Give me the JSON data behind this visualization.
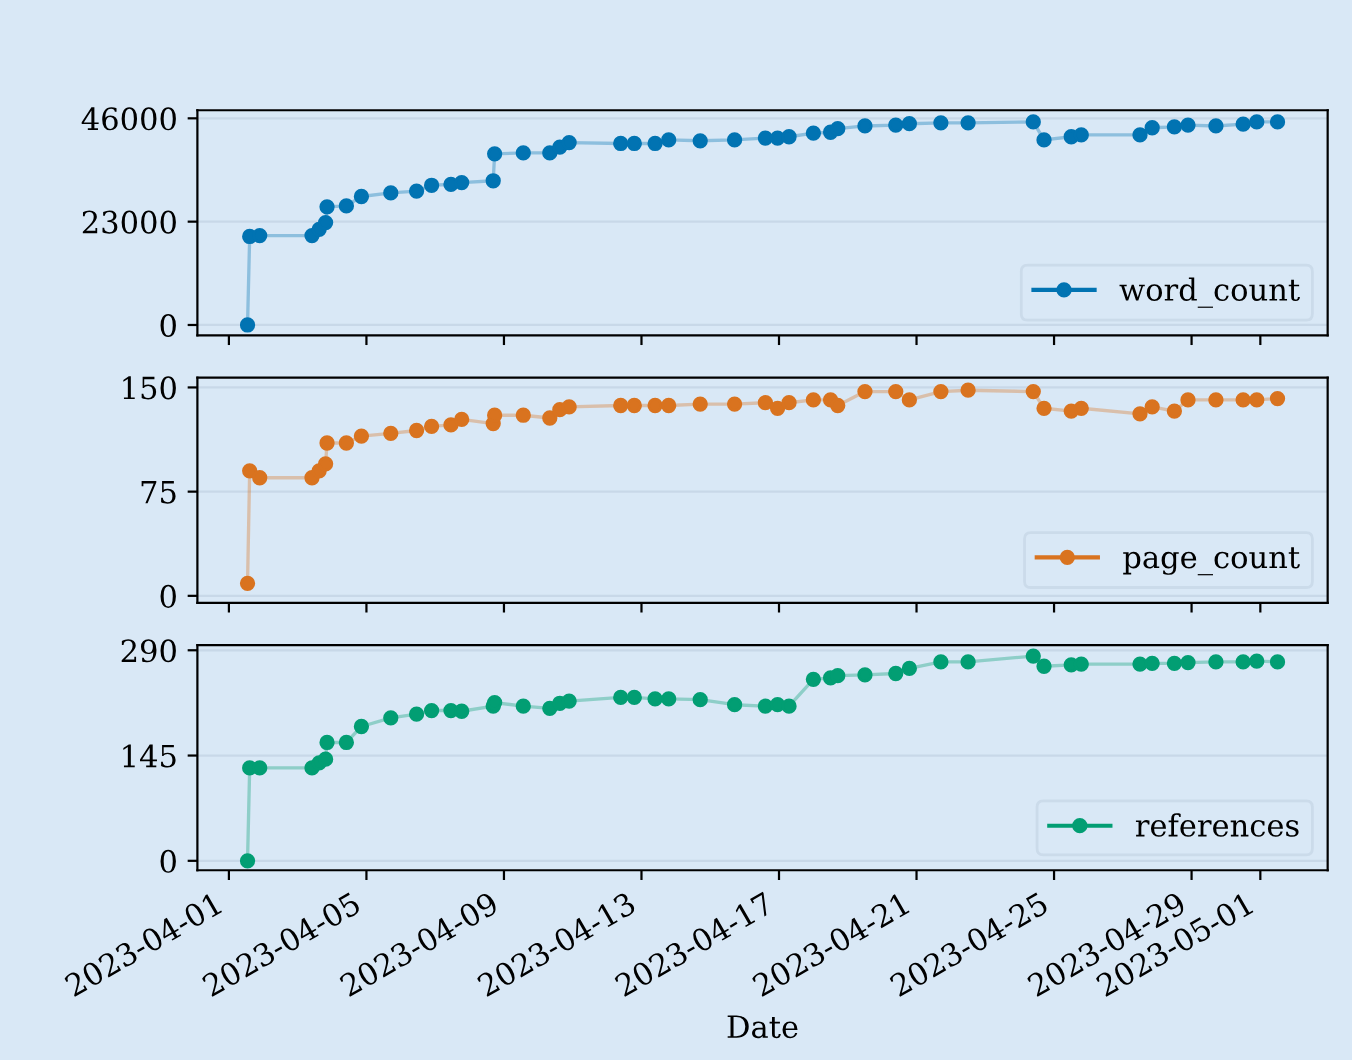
{
  "chart_data": [
    {
      "type": "line",
      "marker": "circle",
      "line_style": "solid",
      "legend": "bottom right",
      "grid": "y",
      "tick_labels": "y",
      "x": [
        "2023-04-01T13:00",
        "2023-04-01T14:30",
        "2023-04-01T21:30",
        "2023-04-03T10:00",
        "2023-04-03T15:00",
        "2023-04-03T19:30",
        "2023-04-03T20:30",
        "2023-04-04T10:00",
        "2023-04-04T20:30",
        "2023-04-05T17:00",
        "2023-04-06T11:00",
        "2023-04-06T21:30",
        "2023-04-07T11:00",
        "2023-04-07T18:30",
        "2023-04-08T16:30",
        "2023-04-08T17:30",
        "2023-04-09T13:30",
        "2023-04-10T08:00",
        "2023-04-10T15:00",
        "2023-04-10T21:30",
        "2023-04-12T09:30",
        "2023-04-12T19:00",
        "2023-04-13T09:30",
        "2023-04-13T19:00",
        "2023-04-14T17:00",
        "2023-04-15T17:00",
        "2023-04-16T14:30",
        "2023-04-16T23:00",
        "2023-04-17T07:00",
        "2023-04-18T00:00",
        "2023-04-18T12:00",
        "2023-04-18T17:00",
        "2023-04-19T12:00",
        "2023-04-20T09:30",
        "2023-04-20T19:00",
        "2023-04-21T17:00",
        "2023-04-22T12:00",
        "2023-04-24T09:30",
        "2023-04-24T17:00",
        "2023-04-25T12:00",
        "2023-04-25T19:00",
        "2023-04-27T12:00",
        "2023-04-27T20:30",
        "2023-04-28T12:00",
        "2023-04-28T21:30",
        "2023-04-29T17:00",
        "2023-04-30T12:00",
        "2023-04-30T21:30",
        "2023-05-01T12:00"
      ],
      "xlim": [
        "2023-03-31T02:00",
        "2023-05-02T23:00"
      ],
      "xticks": [
        "2023-04-01",
        "2023-04-05",
        "2023-04-09",
        "2023-04-13",
        "2023-04-17",
        "2023-04-21",
        "2023-04-25",
        "2023-04-29",
        "2023-05-01"
      ],
      "ylim": [
        -2300,
        47800
      ],
      "yticks": [
        0,
        23000,
        46000
      ],
      "series": [
        {
          "name": "word_count",
          "color": "#0173b2",
          "values": [
            0,
            19700,
            19900,
            19900,
            21300,
            22800,
            26300,
            26500,
            28600,
            29400,
            29800,
            31100,
            31300,
            31700,
            32100,
            38100,
            38300,
            38300,
            39600,
            40600,
            40400,
            40400,
            40400,
            41200,
            41000,
            41200,
            41600,
            41600,
            41900,
            42700,
            42900,
            43700,
            44300,
            44500,
            44800,
            45000,
            45000,
            45200,
            41200,
            41900,
            42300,
            42300,
            43900,
            44100,
            44500,
            44300,
            44700,
            45200,
            45200
          ]
        }
      ]
    },
    {
      "type": "line",
      "marker": "circle",
      "line_style": "solid",
      "legend": "bottom right",
      "grid": "y",
      "tick_labels": "y",
      "x": [
        "2023-04-01T13:00",
        "2023-04-01T14:30",
        "2023-04-01T21:30",
        "2023-04-03T10:00",
        "2023-04-03T15:00",
        "2023-04-03T19:30",
        "2023-04-03T20:30",
        "2023-04-04T10:00",
        "2023-04-04T20:30",
        "2023-04-05T17:00",
        "2023-04-06T11:00",
        "2023-04-06T21:30",
        "2023-04-07T11:00",
        "2023-04-07T18:30",
        "2023-04-08T16:30",
        "2023-04-08T17:30",
        "2023-04-09T13:30",
        "2023-04-10T08:00",
        "2023-04-10T15:00",
        "2023-04-10T21:30",
        "2023-04-12T09:30",
        "2023-04-12T19:00",
        "2023-04-13T09:30",
        "2023-04-13T19:00",
        "2023-04-14T17:00",
        "2023-04-15T17:00",
        "2023-04-16T14:30",
        "2023-04-16T23:00",
        "2023-04-17T07:00",
        "2023-04-18T00:00",
        "2023-04-18T12:00",
        "2023-04-18T17:00",
        "2023-04-19T12:00",
        "2023-04-20T09:30",
        "2023-04-20T19:00",
        "2023-04-21T17:00",
        "2023-04-22T12:00",
        "2023-04-24T09:30",
        "2023-04-24T17:00",
        "2023-04-25T12:00",
        "2023-04-25T19:00",
        "2023-04-27T12:00",
        "2023-04-27T20:30",
        "2023-04-28T12:00",
        "2023-04-28T21:30",
        "2023-04-29T17:00",
        "2023-04-30T12:00",
        "2023-04-30T21:30",
        "2023-05-01T12:00"
      ],
      "xlim": [
        "2023-03-31T02:00",
        "2023-05-02T23:00"
      ],
      "xticks": [
        "2023-04-01",
        "2023-04-05",
        "2023-04-09",
        "2023-04-13",
        "2023-04-17",
        "2023-04-21",
        "2023-04-25",
        "2023-04-29",
        "2023-05-01"
      ],
      "ylim": [
        -5,
        157
      ],
      "yticks": [
        0,
        75,
        150
      ],
      "series": [
        {
          "name": "page_count",
          "color": "#d9731f",
          "values": [
            9,
            90,
            85,
            85,
            90,
            95,
            110,
            110,
            115,
            117,
            119,
            122,
            123,
            127,
            124,
            130,
            130,
            128,
            134,
            136,
            137,
            137,
            137,
            137,
            138,
            138,
            139,
            135,
            139,
            141,
            141,
            137,
            147,
            147,
            141,
            147,
            148,
            147,
            135,
            133,
            135,
            131,
            136,
            133,
            141,
            141,
            141,
            141,
            142
          ]
        }
      ]
    },
    {
      "type": "line",
      "marker": "circle",
      "line_style": "solid",
      "legend": "bottom right",
      "grid": "y",
      "xlabel": "Date",
      "x": [
        "2023-04-01T13:00",
        "2023-04-01T14:30",
        "2023-04-01T21:30",
        "2023-04-03T10:00",
        "2023-04-03T15:00",
        "2023-04-03T19:30",
        "2023-04-03T20:30",
        "2023-04-04T10:00",
        "2023-04-04T20:30",
        "2023-04-05T17:00",
        "2023-04-06T11:00",
        "2023-04-06T21:30",
        "2023-04-07T11:00",
        "2023-04-07T18:30",
        "2023-04-08T16:30",
        "2023-04-08T17:30",
        "2023-04-09T13:30",
        "2023-04-10T08:00",
        "2023-04-10T15:00",
        "2023-04-10T21:30",
        "2023-04-12T09:30",
        "2023-04-12T19:00",
        "2023-04-13T09:30",
        "2023-04-13T19:00",
        "2023-04-14T17:00",
        "2023-04-15T17:00",
        "2023-04-16T14:30",
        "2023-04-16T23:00",
        "2023-04-17T07:00",
        "2023-04-18T00:00",
        "2023-04-18T12:00",
        "2023-04-18T17:00",
        "2023-04-19T12:00",
        "2023-04-20T09:30",
        "2023-04-20T19:00",
        "2023-04-21T17:00",
        "2023-04-22T12:00",
        "2023-04-24T09:30",
        "2023-04-24T17:00",
        "2023-04-25T12:00",
        "2023-04-25T19:00",
        "2023-04-27T12:00",
        "2023-04-27T20:30",
        "2023-04-28T12:00",
        "2023-04-28T21:30",
        "2023-04-29T17:00",
        "2023-04-30T12:00",
        "2023-04-30T21:30",
        "2023-05-01T12:00"
      ],
      "xlim": [
        "2023-03-31T02:00",
        "2023-05-02T23:00"
      ],
      "xticks": [
        "2023-04-01",
        "2023-04-05",
        "2023-04-09",
        "2023-04-13",
        "2023-04-17",
        "2023-04-21",
        "2023-04-25",
        "2023-04-29",
        "2023-05-01"
      ],
      "ylim": [
        -13,
        297
      ],
      "yticks": [
        0,
        145,
        290
      ],
      "series": [
        {
          "name": "references",
          "color": "#029e73",
          "values": [
            0,
            128,
            128,
            128,
            135,
            140,
            163,
            163,
            185,
            197,
            202,
            207,
            207,
            206,
            213,
            218,
            213,
            210,
            217,
            220,
            225,
            225,
            223,
            223,
            222,
            215,
            213,
            215,
            213,
            250,
            252,
            255,
            256,
            258,
            265,
            274,
            274,
            282,
            268,
            270,
            271,
            271,
            272,
            272,
            273,
            274,
            274,
            275,
            274
          ]
        }
      ]
    }
  ]
}
